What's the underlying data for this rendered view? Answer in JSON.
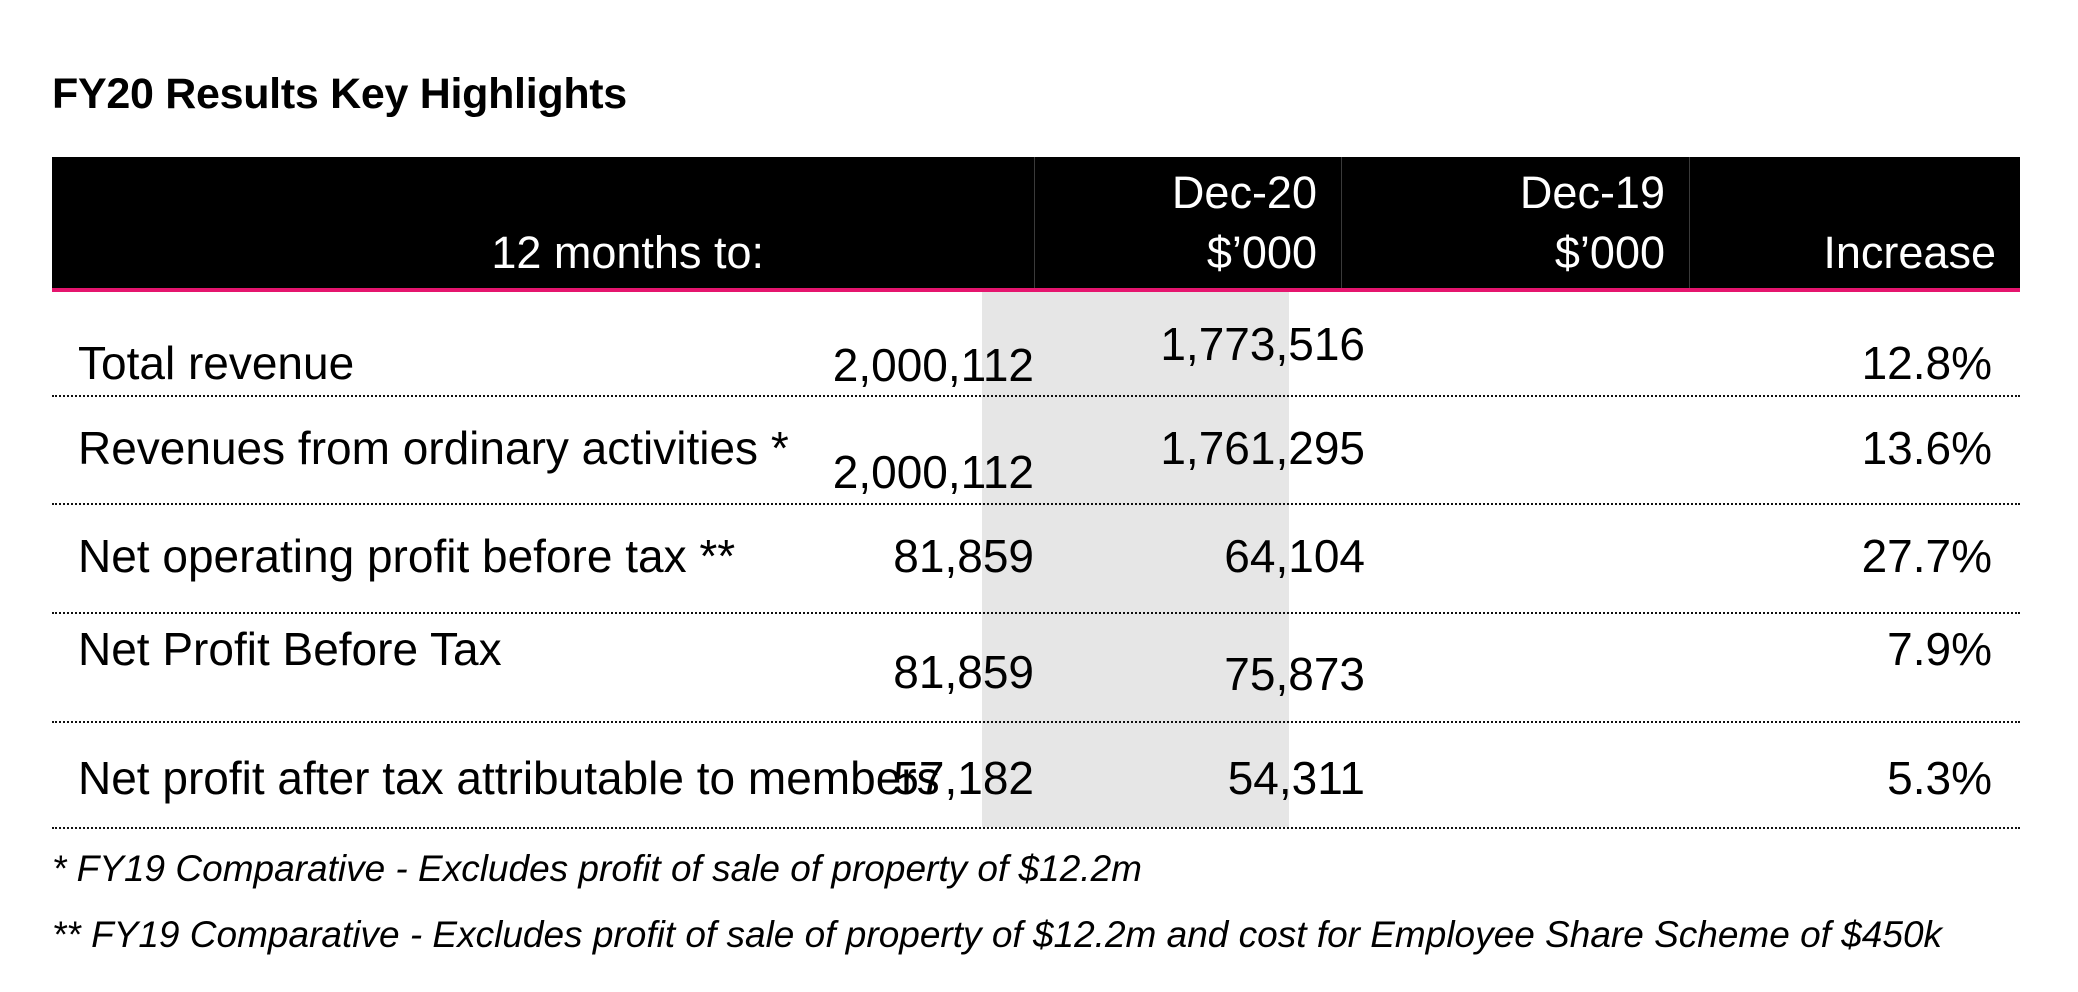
{
  "title": "FY20 Results Key Highlights",
  "header": {
    "label": "12 months to:",
    "col1": {
      "line1": "Dec-20",
      "line2": "$’000"
    },
    "col2": {
      "line1": "Dec-19",
      "line2": "$’000"
    },
    "col3": {
      "line1": "",
      "line2": "Increase"
    }
  },
  "rows": [
    {
      "label": "Total revenue",
      "dec20": "2,000,112",
      "dec19": "1,773,516",
      "increase": "12.8%"
    },
    {
      "label": "Revenues from ordinary activities *",
      "dec20": "2,000,112",
      "dec19": "1,761,295",
      "increase": "13.6%"
    },
    {
      "label": "Net operating profit before tax **",
      "dec20": "81,859",
      "dec19": "64,104",
      "increase": "27.7%"
    },
    {
      "label": "Net Profit Before Tax",
      "dec20": "81,859",
      "dec19": "75,873",
      "increase": "7.9%"
    },
    {
      "label": "Net profit after tax attributable to members",
      "dec20": "57,182",
      "dec19": "54,311",
      "increase": "5.3%"
    }
  ],
  "footnotes": [
    "* FY19 Comparative - Excludes profit of sale of property of $12.2m",
    "** FY19 Comparative - Excludes profit of sale of property of $12.2m and cost for Employee Share Scheme of $450k"
  ],
  "colors": {
    "header_bg": "#000000",
    "accent": "#e5156e",
    "shade": "#e6e6e6"
  }
}
